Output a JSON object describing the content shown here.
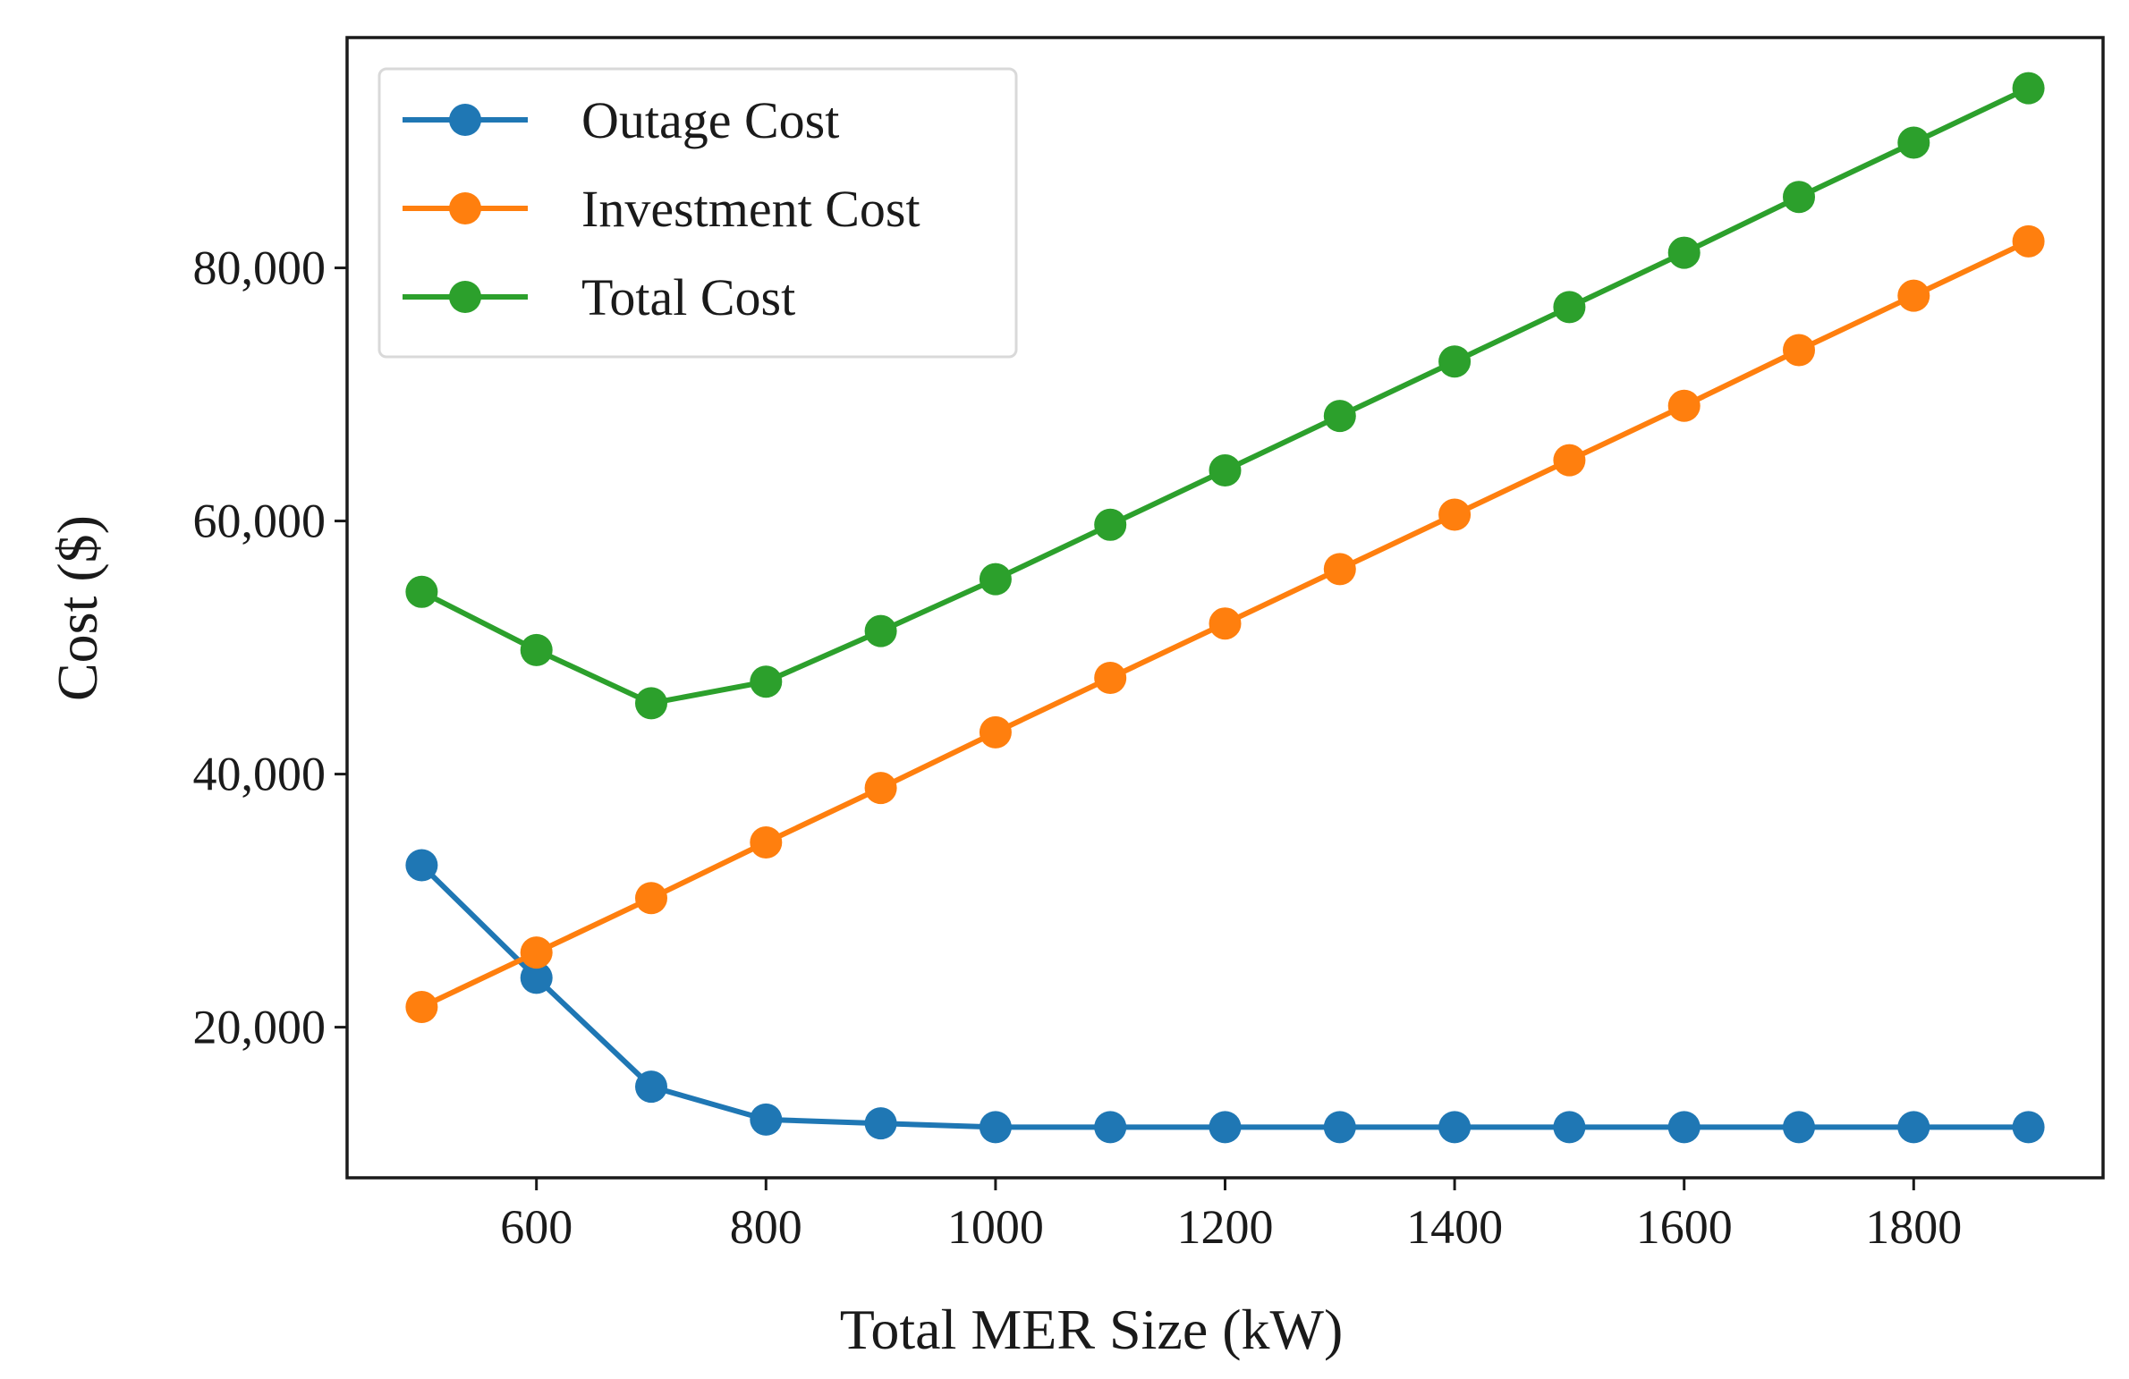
{
  "chart_data": {
    "type": "line",
    "title": "",
    "xlabel": "Total MER Size (kW)",
    "ylabel": "Cost ($)",
    "x": [
      500,
      600,
      700,
      800,
      900,
      1000,
      1100,
      1200,
      1300,
      1400,
      1500,
      1600,
      1700,
      1800,
      1900
    ],
    "xlim": [
      435,
      1965
    ],
    "ylim": [
      8100,
      98200
    ],
    "xticks": [
      600,
      800,
      1000,
      1200,
      1400,
      1600,
      1800
    ],
    "xtick_labels": [
      "600",
      "800",
      "1000",
      "1200",
      "1400",
      "1600",
      "1800"
    ],
    "yticks": [
      20000,
      40000,
      60000,
      80000
    ],
    "ytick_labels": [
      "20,000",
      "40,000",
      "60,000",
      "80,000"
    ],
    "grid": false,
    "legend_position": "top-left",
    "series": [
      {
        "name": "Outage Cost",
        "color": "#1f77b4",
        "values": [
          32800,
          23900,
          15300,
          12700,
          12400,
          12100,
          12100,
          12100,
          12100,
          12100,
          12100,
          12100,
          12100,
          12100,
          12100
        ]
      },
      {
        "name": "Investment Cost",
        "color": "#ff7f0e",
        "values": [
          21600,
          25900,
          30200,
          34600,
          38900,
          43300,
          47600,
          51900,
          56200,
          60500,
          64800,
          69100,
          73500,
          77800,
          82100
        ]
      },
      {
        "name": "Total Cost",
        "color": "#2ca02c",
        "values": [
          54400,
          49800,
          45600,
          47300,
          51300,
          55400,
          59700,
          64000,
          68300,
          72600,
          76900,
          81200,
          85600,
          89900,
          94200
        ]
      }
    ]
  }
}
